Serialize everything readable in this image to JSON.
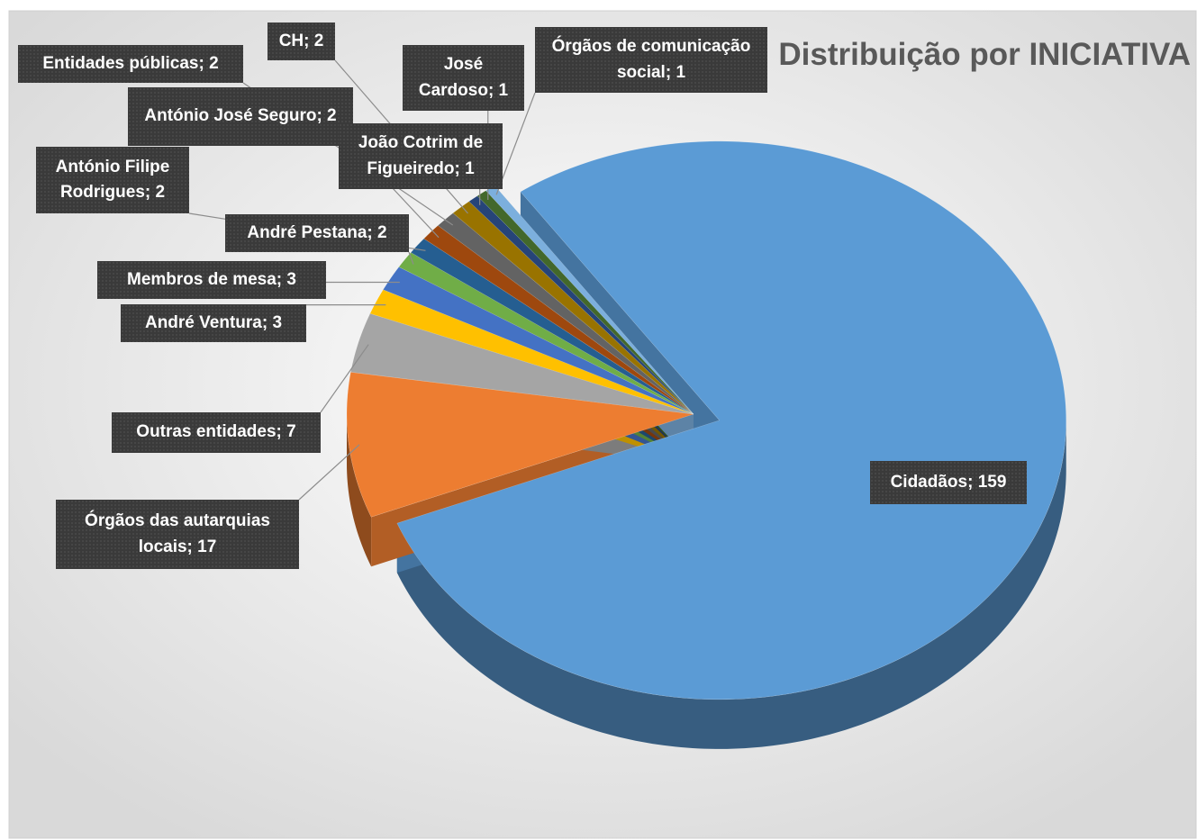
{
  "chart_data": {
    "type": "pie",
    "title": "Distribuição por INICIATIVA",
    "categories": [
      "Cidadãos",
      "Órgãos das autarquias locais",
      "Outras entidades",
      "André Ventura",
      "Membros de mesa",
      "André Pestana",
      "António Filipe Rodrigues",
      "António José Seguro",
      "Entidades públicas",
      "CH",
      "João Cotrim de Figueiredo",
      "José Cardoso",
      "Órgãos de comunicação social"
    ],
    "values": [
      159,
      17,
      7,
      3,
      3,
      2,
      2,
      2,
      2,
      2,
      1,
      1,
      1
    ],
    "value_labels": [
      "Cidadãos; 159",
      "Órgãos das autarquias locais; 17",
      "Outras entidades; 7",
      "André Ventura; 3",
      "Membros de mesa; 3",
      "André Pestana; 2",
      "António Filipe Rodrigues; 2",
      "António José Seguro; 2",
      "Entidades públicas; 2",
      "CH; 2",
      "João Cotrim de Figueiredo; 1",
      "José Cardoso; 1",
      "Órgãos de comunicação social; 1"
    ],
    "colors": [
      "#5b9bd5",
      "#ed7d31",
      "#a5a5a5",
      "#ffc000",
      "#4472c4",
      "#70ad47",
      "#255e91",
      "#9e480e",
      "#636363",
      "#997300",
      "#264478",
      "#43682b",
      "#7cafdd"
    ]
  }
}
